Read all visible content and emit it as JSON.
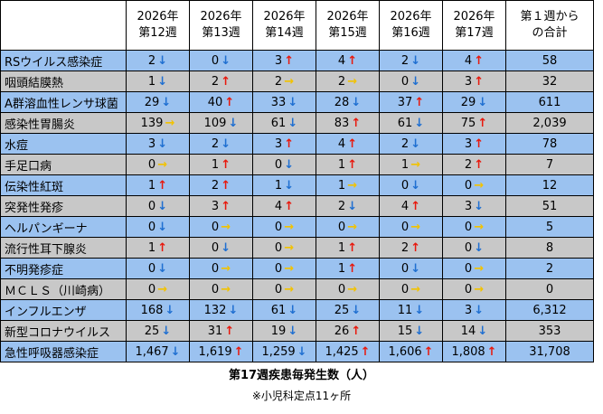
{
  "header": {
    "weeks": [
      {
        "year": "2026年",
        "week": "第12週"
      },
      {
        "year": "2026年",
        "week": "第13週"
      },
      {
        "year": "2026年",
        "week": "第14週"
      },
      {
        "year": "2026年",
        "week": "第15週"
      },
      {
        "year": "2026年",
        "week": "第16週"
      },
      {
        "year": "2026年",
        "week": "第17週"
      }
    ],
    "total_line1": "第１週から",
    "total_line2": "の合計"
  },
  "colors": {
    "up": "#e8180c",
    "down": "#1f6fd1",
    "flat": "#f2c200",
    "blue_row": "#9bc2f0",
    "gray_row": "#c8c8c8"
  },
  "rows": [
    {
      "name": "RSウイルス感染症",
      "style": "blue",
      "cells": [
        {
          "v": "2",
          "t": "down"
        },
        {
          "v": "0",
          "t": "down"
        },
        {
          "v": "3",
          "t": "up"
        },
        {
          "v": "4",
          "t": "up"
        },
        {
          "v": "2",
          "t": "down"
        },
        {
          "v": "4",
          "t": "up"
        }
      ],
      "total": "58"
    },
    {
      "name": "咽頭結膜熱",
      "style": "gray",
      "cells": [
        {
          "v": "1",
          "t": "down"
        },
        {
          "v": "2",
          "t": "up"
        },
        {
          "v": "2",
          "t": "flat"
        },
        {
          "v": "2",
          "t": "flat"
        },
        {
          "v": "0",
          "t": "down"
        },
        {
          "v": "3",
          "t": "up"
        }
      ],
      "total": "32"
    },
    {
      "name": "A群溶血性レンサ球菌",
      "style": "blue",
      "cells": [
        {
          "v": "29",
          "t": "down"
        },
        {
          "v": "40",
          "t": "up"
        },
        {
          "v": "33",
          "t": "down"
        },
        {
          "v": "28",
          "t": "down"
        },
        {
          "v": "37",
          "t": "up"
        },
        {
          "v": "29",
          "t": "down"
        }
      ],
      "total": "611"
    },
    {
      "name": "感染性胃腸炎",
      "style": "gray",
      "cells": [
        {
          "v": "139",
          "t": "flat"
        },
        {
          "v": "109",
          "t": "down"
        },
        {
          "v": "61",
          "t": "down"
        },
        {
          "v": "83",
          "t": "up"
        },
        {
          "v": "61",
          "t": "down"
        },
        {
          "v": "75",
          "t": "up"
        }
      ],
      "total": "2,039"
    },
    {
      "name": "水痘",
      "style": "blue",
      "cells": [
        {
          "v": "3",
          "t": "down"
        },
        {
          "v": "2",
          "t": "down"
        },
        {
          "v": "3",
          "t": "up"
        },
        {
          "v": "4",
          "t": "up"
        },
        {
          "v": "2",
          "t": "down"
        },
        {
          "v": "3",
          "t": "up"
        }
      ],
      "total": "78"
    },
    {
      "name": "手足口病",
      "style": "gray",
      "cells": [
        {
          "v": "0",
          "t": "flat"
        },
        {
          "v": "1",
          "t": "up"
        },
        {
          "v": "0",
          "t": "down"
        },
        {
          "v": "1",
          "t": "up"
        },
        {
          "v": "1",
          "t": "flat"
        },
        {
          "v": "2",
          "t": "up"
        }
      ],
      "total": "7"
    },
    {
      "name": "伝染性紅斑",
      "style": "blue",
      "cells": [
        {
          "v": "1",
          "t": "up"
        },
        {
          "v": "2",
          "t": "up"
        },
        {
          "v": "1",
          "t": "down"
        },
        {
          "v": "1",
          "t": "flat"
        },
        {
          "v": "0",
          "t": "down"
        },
        {
          "v": "0",
          "t": "flat"
        }
      ],
      "total": "12"
    },
    {
      "name": "突発性発疹",
      "style": "gray",
      "cells": [
        {
          "v": "0",
          "t": "down"
        },
        {
          "v": "3",
          "t": "up"
        },
        {
          "v": "4",
          "t": "up"
        },
        {
          "v": "2",
          "t": "down"
        },
        {
          "v": "4",
          "t": "up"
        },
        {
          "v": "3",
          "t": "down"
        }
      ],
      "total": "51"
    },
    {
      "name": "ヘルパンギーナ",
      "style": "blue",
      "cells": [
        {
          "v": "0",
          "t": "down"
        },
        {
          "v": "0",
          "t": "flat"
        },
        {
          "v": "0",
          "t": "flat"
        },
        {
          "v": "0",
          "t": "flat"
        },
        {
          "v": "0",
          "t": "flat"
        },
        {
          "v": "0",
          "t": "flat"
        }
      ],
      "total": "5"
    },
    {
      "name": "流行性耳下腺炎",
      "style": "gray",
      "cells": [
        {
          "v": "1",
          "t": "up"
        },
        {
          "v": "0",
          "t": "down"
        },
        {
          "v": "0",
          "t": "flat"
        },
        {
          "v": "1",
          "t": "up"
        },
        {
          "v": "2",
          "t": "up"
        },
        {
          "v": "0",
          "t": "down"
        }
      ],
      "total": "8"
    },
    {
      "name": "不明発疹症",
      "style": "blue",
      "cells": [
        {
          "v": "0",
          "t": "down"
        },
        {
          "v": "0",
          "t": "flat"
        },
        {
          "v": "0",
          "t": "flat"
        },
        {
          "v": "1",
          "t": "up"
        },
        {
          "v": "0",
          "t": "down"
        },
        {
          "v": "0",
          "t": "flat"
        }
      ],
      "total": "2"
    },
    {
      "name": "ＭＣＬＳ（川崎病）",
      "style": "gray",
      "cells": [
        {
          "v": "0",
          "t": "flat"
        },
        {
          "v": "0",
          "t": "flat"
        },
        {
          "v": "0",
          "t": "flat"
        },
        {
          "v": "0",
          "t": "flat"
        },
        {
          "v": "0",
          "t": "flat"
        },
        {
          "v": "0",
          "t": "flat"
        }
      ],
      "total": "0"
    },
    {
      "name": "インフルエンザ",
      "style": "blue",
      "cells": [
        {
          "v": "168",
          "t": "down"
        },
        {
          "v": "132",
          "t": "down"
        },
        {
          "v": "61",
          "t": "down"
        },
        {
          "v": "25",
          "t": "down"
        },
        {
          "v": "11",
          "t": "down"
        },
        {
          "v": "3",
          "t": "down"
        }
      ],
      "total": "6,312"
    },
    {
      "name": "新型コロナウイルス",
      "style": "gray",
      "cells": [
        {
          "v": "25",
          "t": "down"
        },
        {
          "v": "31",
          "t": "up"
        },
        {
          "v": "19",
          "t": "down"
        },
        {
          "v": "26",
          "t": "up"
        },
        {
          "v": "15",
          "t": "down"
        },
        {
          "v": "14",
          "t": "down"
        }
      ],
      "total": "353"
    },
    {
      "name": "急性呼吸器感染症",
      "style": "blue",
      "cells": [
        {
          "v": "1,467",
          "t": "down"
        },
        {
          "v": "1,619",
          "t": "up"
        },
        {
          "v": "1,259",
          "t": "down"
        },
        {
          "v": "1,425",
          "t": "up"
        },
        {
          "v": "1,606",
          "t": "up"
        },
        {
          "v": "1,808",
          "t": "up"
        }
      ],
      "total": "31,708"
    }
  ],
  "caption": {
    "title": "第17週疾患毎発生数（人）",
    "note": "※小児科定点11ヶ所"
  }
}
